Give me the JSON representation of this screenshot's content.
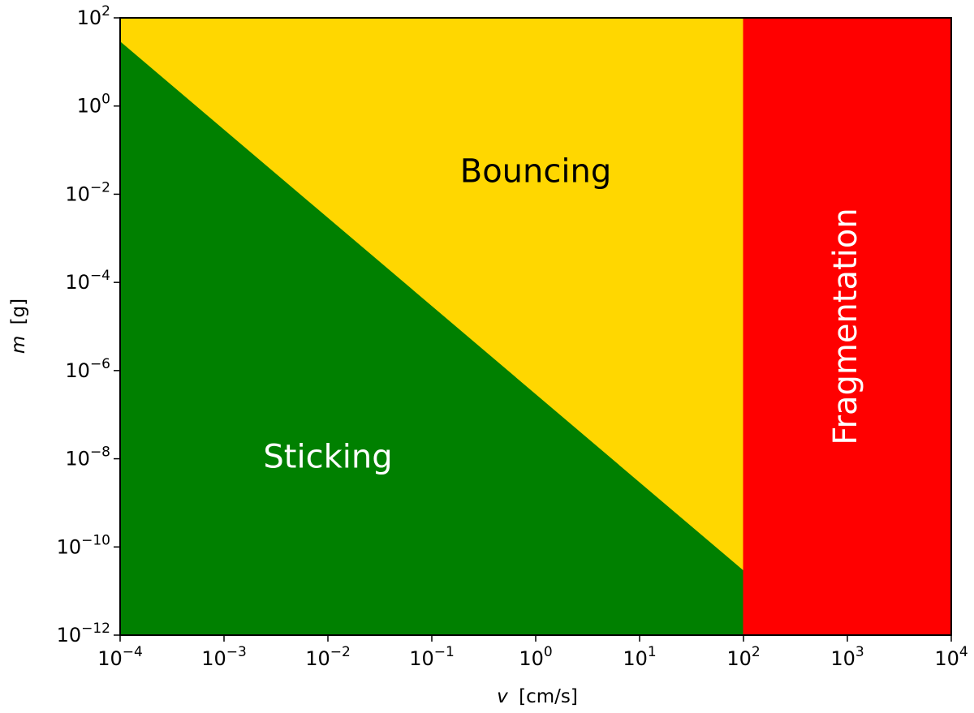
{
  "chart_data": {
    "type": "area",
    "xlabel_symbol": "v",
    "xlabel_unit": "[cm/s]",
    "ylabel_symbol": "m",
    "ylabel_unit": "[g]",
    "x_scale": "log",
    "y_scale": "log",
    "xlim": [
      0.0001,
      10000
    ],
    "ylim": [
      1e-12,
      100
    ],
    "x_tick_exponents": [
      -4,
      -3,
      -2,
      -1,
      0,
      1,
      2,
      3,
      4
    ],
    "y_tick_exponents": [
      2,
      0,
      -2,
      -4,
      -6,
      -8,
      -10,
      -12
    ],
    "tick_base": "10",
    "grid": false,
    "regions": [
      {
        "name": "Sticking",
        "color": "#008000",
        "label_color": "#ffffff",
        "boundary": [
          [
            0.0001,
            100
          ],
          [
            0.0001,
            1e-12
          ],
          [
            100,
            1e-12
          ],
          [
            100,
            3e-11
          ]
        ],
        "label_at": [
          0.01,
          1e-08
        ]
      },
      {
        "name": "Bouncing",
        "color": "#ffd700",
        "label_color": "#000000",
        "boundary": [
          [
            0.0001,
            30
          ],
          [
            0.0001,
            100
          ],
          [
            100,
            100
          ],
          [
            100,
            3e-11
          ]
        ],
        "label_at": [
          1,
          0.03
        ]
      },
      {
        "name": "Fragmentation",
        "color": "#ff0000",
        "label_color": "#ffffff",
        "label_rotation": -90,
        "boundary": [
          [
            100,
            1e-12
          ],
          [
            100,
            100
          ],
          [
            10000,
            100
          ],
          [
            10000,
            1e-12
          ]
        ],
        "label_at": [
          1000,
          1e-05
        ]
      }
    ]
  }
}
